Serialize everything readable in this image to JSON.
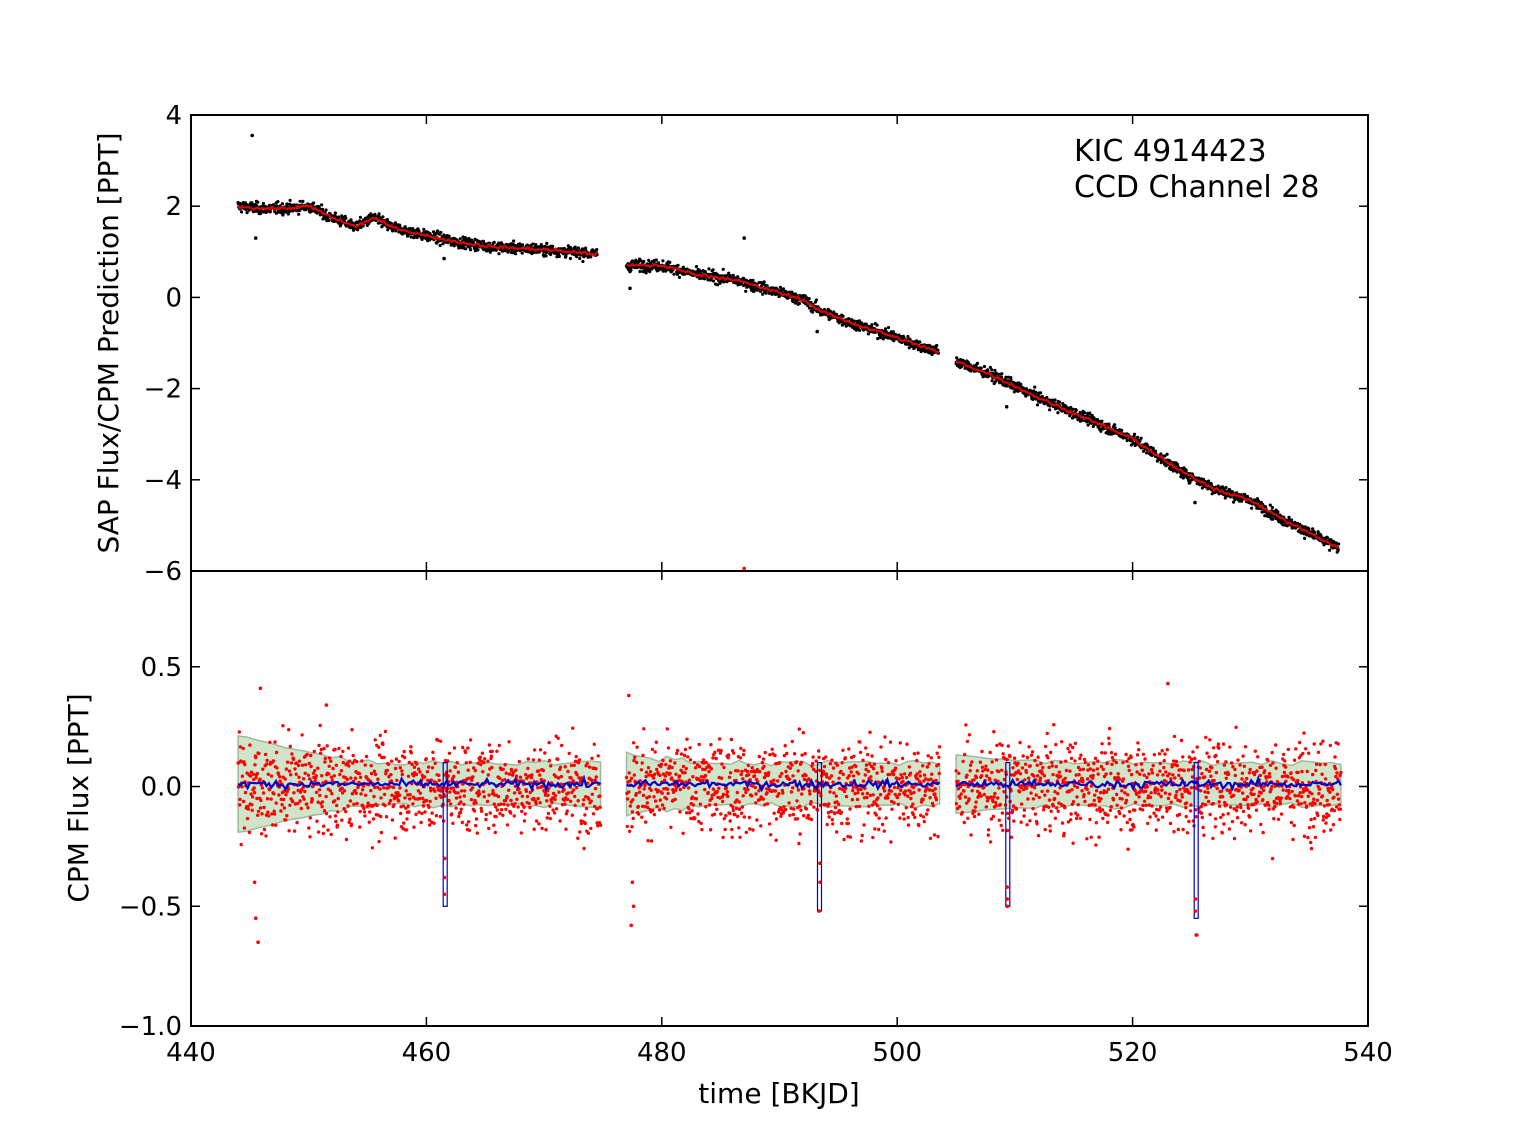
{
  "chart_data": [
    {
      "type": "scatter",
      "panel": "top",
      "title": "",
      "xlabel": "",
      "ylabel": "SAP Flux/CPM Prediction [PPT]",
      "xlim": [
        440,
        540
      ],
      "ylim": [
        -6,
        4
      ],
      "yticks": [
        4,
        2,
        0,
        -2,
        -4,
        -6
      ],
      "ytick_labels": [
        "4",
        "2",
        "0",
        "−2",
        "−4",
        "−6"
      ],
      "annotations": [
        "KIC 4914423",
        "CCD Channel 28"
      ],
      "annotation_position": "top-right",
      "grid": false,
      "series": [
        {
          "kind": "points",
          "color": "#000000",
          "segments": [
            {
              "x": [
                444.0,
                446,
                448,
                450,
                452,
                454,
                455.5,
                457,
                460,
                463,
                466,
                470,
                474.5
              ],
              "y": [
                2.0,
                1.95,
                1.95,
                2.0,
                1.75,
                1.55,
                1.75,
                1.55,
                1.35,
                1.2,
                1.1,
                1.05,
                0.95
              ]
            },
            {
              "x": [
                477.0,
                480,
                483,
                486,
                488,
                490,
                492,
                493.5,
                496,
                499,
                503.5
              ],
              "y": [
                0.7,
                0.7,
                0.5,
                0.4,
                0.25,
                0.1,
                -0.05,
                -0.3,
                -0.55,
                -0.8,
                -1.2
              ]
            },
            {
              "x": [
                505.0,
                508,
                512,
                516,
                520,
                524,
                527,
                530,
                533,
                537.5
              ],
              "y": [
                -1.4,
                -1.7,
                -2.2,
                -2.65,
                -3.1,
                -3.8,
                -4.2,
                -4.45,
                -4.9,
                -5.5
              ]
            }
          ],
          "outliers": [
            {
              "x": 445.2,
              "y": 3.55
            },
            {
              "x": 445.5,
              "y": 1.3
            },
            {
              "x": 461.5,
              "y": 0.85
            },
            {
              "x": 477.3,
              "y": 0.2
            },
            {
              "x": 487.0,
              "y": 1.3
            },
            {
              "x": 493.2,
              "y": -0.75
            },
            {
              "x": 509.3,
              "y": -2.4
            },
            {
              "x": 525.3,
              "y": -4.5
            }
          ]
        },
        {
          "kind": "line",
          "color": "#dd0000",
          "segments": [
            {
              "x": [
                444.0,
                446,
                448,
                450,
                452,
                454,
                455.5,
                457,
                460,
                463,
                466,
                470,
                474.5
              ],
              "y": [
                2.0,
                1.95,
                1.95,
                2.0,
                1.75,
                1.55,
                1.75,
                1.55,
                1.35,
                1.2,
                1.1,
                1.05,
                0.95
              ]
            },
            {
              "x": [
                477.0,
                480,
                483,
                486,
                488,
                490,
                492,
                493.5,
                496,
                499,
                503.5
              ],
              "y": [
                0.7,
                0.7,
                0.5,
                0.4,
                0.25,
                0.1,
                -0.05,
                -0.3,
                -0.55,
                -0.8,
                -1.2
              ]
            },
            {
              "x": [
                505.0,
                508,
                512,
                516,
                520,
                524,
                527,
                530,
                533,
                537.5
              ],
              "y": [
                -1.4,
                -1.7,
                -2.2,
                -2.65,
                -3.1,
                -3.8,
                -4.2,
                -4.45,
                -4.9,
                -5.5
              ]
            }
          ]
        }
      ]
    },
    {
      "type": "scatter",
      "panel": "bottom",
      "title": "",
      "xlabel": "time [BKJD]",
      "ylabel": "CPM Flux [PPT]",
      "xlim": [
        440,
        540
      ],
      "ylim": [
        -1.0,
        0.9
      ],
      "xticks": [
        440,
        460,
        480,
        500,
        520,
        540
      ],
      "xtick_labels": [
        "440",
        "460",
        "480",
        "500",
        "520",
        "540"
      ],
      "yticks": [
        0.5,
        0.0,
        -0.5,
        -1.0
      ],
      "ytick_labels": [
        "0.5",
        "0.0",
        "−0.5",
        "−1.0"
      ],
      "grid": false,
      "segments": [
        [
          444.0,
          474.8
        ],
        [
          477.0,
          503.6
        ],
        [
          505.0,
          537.7
        ]
      ],
      "points": {
        "color": "#ff0000",
        "scatter_std_ppt": 0.095,
        "outliers": [
          {
            "x": 487.0,
            "y": 0.91
          },
          {
            "x": 445.7,
            "y": -0.65
          },
          {
            "x": 445.5,
            "y": -0.55
          },
          {
            "x": 445.4,
            "y": -0.4
          },
          {
            "x": 445.9,
            "y": 0.41
          },
          {
            "x": 477.4,
            "y": -0.58
          },
          {
            "x": 477.6,
            "y": -0.5
          },
          {
            "x": 477.5,
            "y": -0.4
          },
          {
            "x": 477.2,
            "y": 0.38
          },
          {
            "x": 523.0,
            "y": 0.43
          },
          {
            "x": 451.5,
            "y": 0.34
          },
          {
            "x": 525.4,
            "y": -0.62
          }
        ]
      },
      "transits": [
        {
          "x": 461.6,
          "depth": -0.5,
          "points_y": [
            -0.3,
            -0.38,
            -0.45
          ]
        },
        {
          "x": 493.4,
          "depth": -0.52,
          "points_y": [
            -0.32,
            -0.4,
            -0.52
          ]
        },
        {
          "x": 509.4,
          "depth": -0.5,
          "points_y": [
            -0.42,
            -0.47,
            -0.5
          ]
        },
        {
          "x": 525.4,
          "depth": -0.55,
          "points_y": [
            -0.47,
            -0.52,
            -0.62
          ]
        }
      ],
      "model_line": {
        "color": "#0000cc",
        "level": 0.01
      },
      "band": {
        "color": "#c8dfc0",
        "edge_color": "#a0b8a0",
        "half_width": 0.09,
        "start_half_width": 0.2
      }
    }
  ]
}
